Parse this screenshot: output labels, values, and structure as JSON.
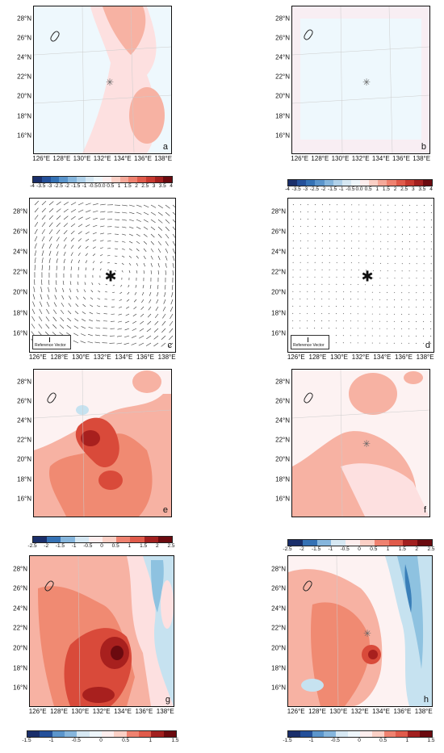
{
  "figure": {
    "panel_letters": [
      "a",
      "b",
      "c",
      "d",
      "e",
      "f",
      "g",
      "h"
    ],
    "y_ticks": [
      "28°N",
      "26°N",
      "24°N",
      "22°N",
      "20°N",
      "18°N",
      "16°N"
    ],
    "x_ticks": [
      "126°E",
      "128°E",
      "130°E",
      "132°E",
      "134°E",
      "136°E",
      "138°E"
    ],
    "reference_vector_label": "Reference Vector"
  },
  "colorbars": {
    "row1": [
      "-4",
      "-3.5",
      "-3",
      "-2.5",
      "-2",
      "-1.5",
      "-1",
      "-0.5",
      "0.0",
      "0.5",
      "1",
      "1.5",
      "2",
      "2.5",
      "3",
      "3.5",
      "4"
    ],
    "row1_right": [
      "-4",
      "-3.5",
      "-3",
      "-2.5",
      "-2",
      "-1.5",
      "-1",
      "-0.5",
      "0.0",
      "0.5",
      "1",
      "1.5",
      "2",
      "2.5",
      "3",
      "3.5",
      "4"
    ],
    "row3": [
      "-2.5",
      "-2",
      "-1.5",
      "-1",
      "-0.5",
      "0",
      "0.5",
      "1",
      "1.5",
      "2",
      "2.5"
    ],
    "row4": [
      "-1.5",
      "-1",
      "-0.5",
      "0",
      "0.5",
      "1",
      "1.5"
    ]
  },
  "colors": {
    "ocean_bg": "#eef8fd",
    "light_pink": "#fde0e0",
    "pink": "#f7b2a3",
    "salmon": "#f08a72",
    "red": "#d94a3a",
    "dark_red": "#a8201e",
    "darkest_red": "#6b0a0f",
    "light_blue": "#c6e2f0",
    "blue": "#8ec2e0",
    "dark_blue": "#3a7fb8"
  }
}
